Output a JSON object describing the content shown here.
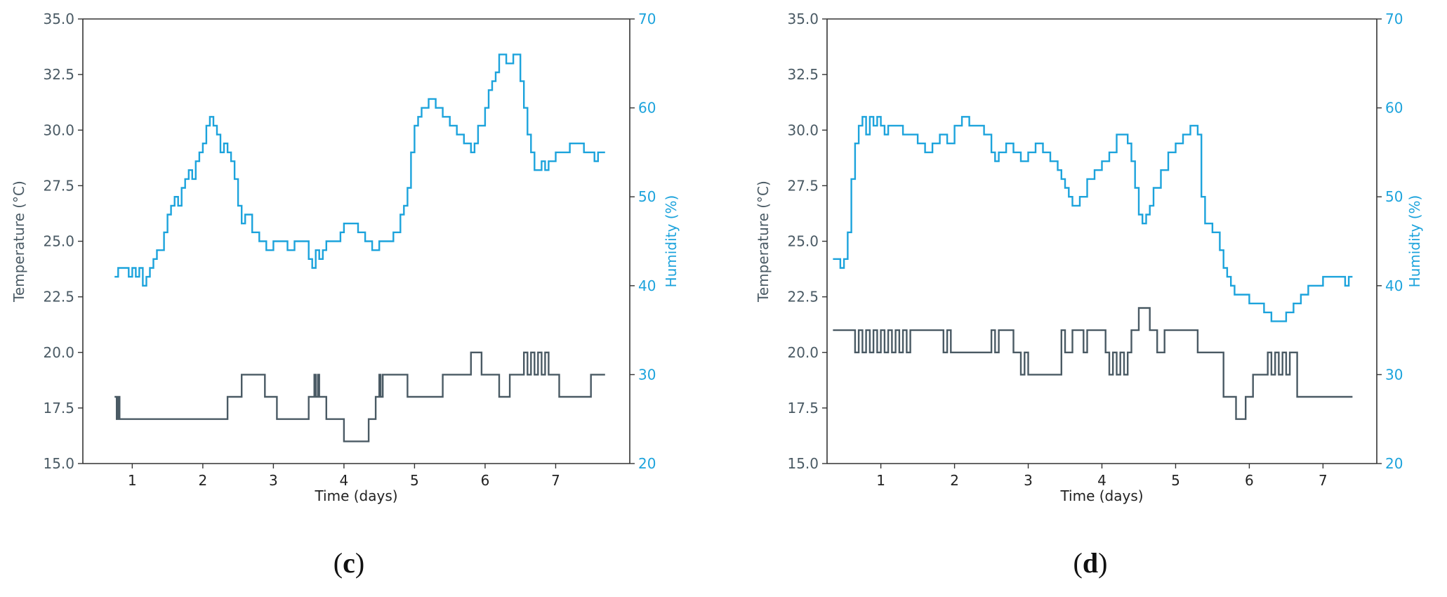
{
  "panels": [
    {
      "panel_label": "c",
      "left_axis": {
        "label": "Temperature (°C)",
        "ticks": [
          "15.0",
          "17.5",
          "20.0",
          "22.5",
          "25.0",
          "27.5",
          "30.0",
          "32.5",
          "35.0"
        ]
      },
      "right_axis": {
        "label": "Humidity (%)",
        "ticks": [
          "20",
          "30",
          "40",
          "50",
          "60",
          "70"
        ]
      },
      "x_axis": {
        "label": "Time (days)",
        "ticks": [
          "1",
          "2",
          "3",
          "4",
          "5",
          "6",
          "7"
        ]
      }
    },
    {
      "panel_label": "d",
      "left_axis": {
        "label": "Temperature (°C)",
        "ticks": [
          "15.0",
          "17.5",
          "20.0",
          "22.5",
          "25.0",
          "27.5",
          "30.0",
          "32.5",
          "35.0"
        ]
      },
      "right_axis": {
        "label": "Humidity (%)",
        "ticks": [
          "20",
          "30",
          "40",
          "50",
          "60",
          "70"
        ]
      },
      "x_axis": {
        "label": "Time (days)",
        "ticks": [
          "1",
          "2",
          "3",
          "4",
          "5",
          "6",
          "7"
        ]
      }
    }
  ],
  "colors": {
    "temperature": "#4a5a64",
    "humidity": "#1ca3dc",
    "axis": "#333333"
  },
  "chart_data": [
    {
      "type": "line",
      "panel": "c",
      "xlabel": "Time (days)",
      "ylabel": "Temperature (°C)",
      "ylabel_right": "Humidity (%)",
      "xlim": [
        0.3,
        8.05
      ],
      "ylim": [
        15.0,
        35.0
      ],
      "ylim_right": [
        20,
        70
      ],
      "grid": false,
      "series": [
        {
          "axis": "left",
          "step": true,
          "x": [
            0.75,
            0.78,
            0.8,
            0.82,
            0.85,
            2.35,
            2.55,
            2.88,
            3.05,
            3.5,
            3.58,
            3.6,
            3.63,
            3.65,
            3.7,
            3.75,
            4.0,
            4.35,
            4.45,
            4.5,
            4.52,
            4.55,
            4.6,
            4.9,
            5.4,
            5.8,
            5.95,
            6.2,
            6.35,
            6.55,
            6.6,
            6.65,
            6.7,
            6.75,
            6.8,
            6.85,
            6.9,
            7.05,
            7.5,
            7.7
          ],
          "y": [
            18,
            17,
            18,
            17,
            17,
            18,
            19,
            18,
            17,
            18,
            19,
            18,
            19,
            18,
            18,
            17,
            16,
            17,
            18,
            19,
            18,
            19,
            19,
            18,
            19,
            20,
            19,
            18,
            19,
            20,
            19,
            20,
            19,
            20,
            19,
            20,
            19,
            18,
            19,
            19
          ]
        },
        {
          "axis": "right",
          "step": true,
          "x": [
            0.75,
            0.8,
            0.9,
            0.95,
            1.0,
            1.05,
            1.1,
            1.15,
            1.2,
            1.25,
            1.3,
            1.35,
            1.45,
            1.5,
            1.55,
            1.6,
            1.65,
            1.7,
            1.75,
            1.8,
            1.85,
            1.9,
            1.95,
            2.0,
            2.05,
            2.1,
            2.15,
            2.2,
            2.25,
            2.3,
            2.35,
            2.4,
            2.45,
            2.5,
            2.55,
            2.6,
            2.7,
            2.8,
            2.9,
            3.0,
            3.1,
            3.2,
            3.3,
            3.4,
            3.5,
            3.55,
            3.6,
            3.65,
            3.7,
            3.75,
            3.85,
            3.95,
            4.0,
            4.1,
            4.2,
            4.3,
            4.4,
            4.5,
            4.6,
            4.7,
            4.8,
            4.85,
            4.9,
            4.95,
            5.0,
            5.05,
            5.1,
            5.2,
            5.3,
            5.4,
            5.5,
            5.6,
            5.7,
            5.8,
            5.85,
            5.9,
            6.0,
            6.05,
            6.1,
            6.15,
            6.2,
            6.3,
            6.4,
            6.5,
            6.55,
            6.6,
            6.65,
            6.7,
            6.8,
            6.85,
            6.9,
            7.0,
            7.1,
            7.2,
            7.3,
            7.4,
            7.5,
            7.55,
            7.6,
            7.7
          ],
          "y": [
            41,
            42,
            42,
            41,
            42,
            41,
            42,
            40,
            41,
            42,
            43,
            44,
            46,
            48,
            49,
            50,
            49,
            51,
            52,
            53,
            52,
            54,
            55,
            56,
            58,
            59,
            58,
            57,
            55,
            56,
            55,
            54,
            52,
            49,
            47,
            48,
            46,
            45,
            44,
            45,
            45,
            44,
            45,
            45,
            43,
            42,
            44,
            43,
            44,
            45,
            45,
            46,
            47,
            47,
            46,
            45,
            44,
            45,
            45,
            46,
            48,
            49,
            51,
            55,
            58,
            59,
            60,
            61,
            60,
            59,
            58,
            57,
            56,
            55,
            56,
            58,
            60,
            62,
            63,
            64,
            66,
            65,
            66,
            63,
            60,
            57,
            55,
            53,
            54,
            53,
            54,
            55,
            55,
            56,
            56,
            55,
            55,
            54,
            55,
            55
          ]
        }
      ]
    },
    {
      "type": "line",
      "panel": "d",
      "xlabel": "Time (days)",
      "ylabel": "Temperature (°C)",
      "ylabel_right": "Humidity (%)",
      "xlim": [
        0.27,
        7.73
      ],
      "ylim": [
        15.0,
        35.0
      ],
      "ylim_right": [
        20,
        70
      ],
      "grid": false,
      "series": [
        {
          "axis": "left",
          "step": true,
          "x": [
            0.35,
            0.65,
            0.7,
            0.75,
            0.8,
            0.85,
            0.9,
            0.95,
            1.0,
            1.05,
            1.1,
            1.15,
            1.2,
            1.25,
            1.3,
            1.35,
            1.4,
            1.75,
            1.85,
            1.9,
            1.95,
            2.0,
            2.5,
            2.55,
            2.6,
            2.8,
            2.9,
            2.95,
            3.0,
            3.4,
            3.45,
            3.5,
            3.6,
            3.75,
            3.8,
            4.05,
            4.1,
            4.15,
            4.2,
            4.25,
            4.3,
            4.35,
            4.4,
            4.5,
            4.65,
            4.75,
            4.85,
            5.3,
            5.65,
            5.82,
            5.95,
            6.05,
            6.25,
            6.3,
            6.35,
            6.4,
            6.45,
            6.5,
            6.55,
            6.65,
            7.4
          ],
          "y": [
            21,
            20,
            21,
            20,
            21,
            20,
            21,
            20,
            21,
            20,
            21,
            20,
            21,
            20,
            21,
            20,
            21,
            21,
            20,
            21,
            20,
            20,
            21,
            20,
            21,
            20,
            19,
            20,
            19,
            19,
            21,
            20,
            21,
            20,
            21,
            20,
            19,
            20,
            19,
            20,
            19,
            20,
            21,
            22,
            21,
            20,
            21,
            20,
            18,
            17,
            18,
            19,
            20,
            19,
            20,
            19,
            20,
            19,
            20,
            18,
            18
          ]
        },
        {
          "axis": "right",
          "step": true,
          "x": [
            0.35,
            0.45,
            0.5,
            0.55,
            0.6,
            0.65,
            0.7,
            0.75,
            0.8,
            0.85,
            0.9,
            0.95,
            1.0,
            1.05,
            1.1,
            1.2,
            1.3,
            1.4,
            1.5,
            1.6,
            1.7,
            1.8,
            1.9,
            2.0,
            2.1,
            2.2,
            2.3,
            2.4,
            2.5,
            2.55,
            2.6,
            2.7,
            2.8,
            2.9,
            3.0,
            3.1,
            3.2,
            3.3,
            3.4,
            3.45,
            3.5,
            3.55,
            3.6,
            3.7,
            3.8,
            3.9,
            4.0,
            4.1,
            4.2,
            4.3,
            4.35,
            4.4,
            4.45,
            4.5,
            4.55,
            4.6,
            4.65,
            4.7,
            4.8,
            4.9,
            5.0,
            5.1,
            5.2,
            5.25,
            5.3,
            5.35,
            5.4,
            5.5,
            5.6,
            5.65,
            5.7,
            5.75,
            5.8,
            5.9,
            6.0,
            6.1,
            6.2,
            6.3,
            6.4,
            6.5,
            6.6,
            6.7,
            6.8,
            6.9,
            7.0,
            7.1,
            7.2,
            7.3,
            7.35,
            7.4
          ],
          "y": [
            43,
            42,
            43,
            46,
            52,
            56,
            58,
            59,
            57,
            59,
            58,
            59,
            58,
            57,
            58,
            58,
            57,
            57,
            56,
            55,
            56,
            57,
            56,
            58,
            59,
            58,
            58,
            57,
            55,
            54,
            55,
            56,
            55,
            54,
            55,
            56,
            55,
            54,
            53,
            52,
            51,
            50,
            49,
            50,
            52,
            53,
            54,
            55,
            57,
            57,
            56,
            54,
            51,
            48,
            47,
            48,
            49,
            51,
            53,
            55,
            56,
            57,
            58,
            58,
            57,
            50,
            47,
            46,
            44,
            42,
            41,
            40,
            39,
            39,
            38,
            38,
            37,
            36,
            36,
            37,
            38,
            39,
            40,
            40,
            41,
            41,
            41,
            40,
            41,
            41
          ]
        }
      ]
    }
  ]
}
